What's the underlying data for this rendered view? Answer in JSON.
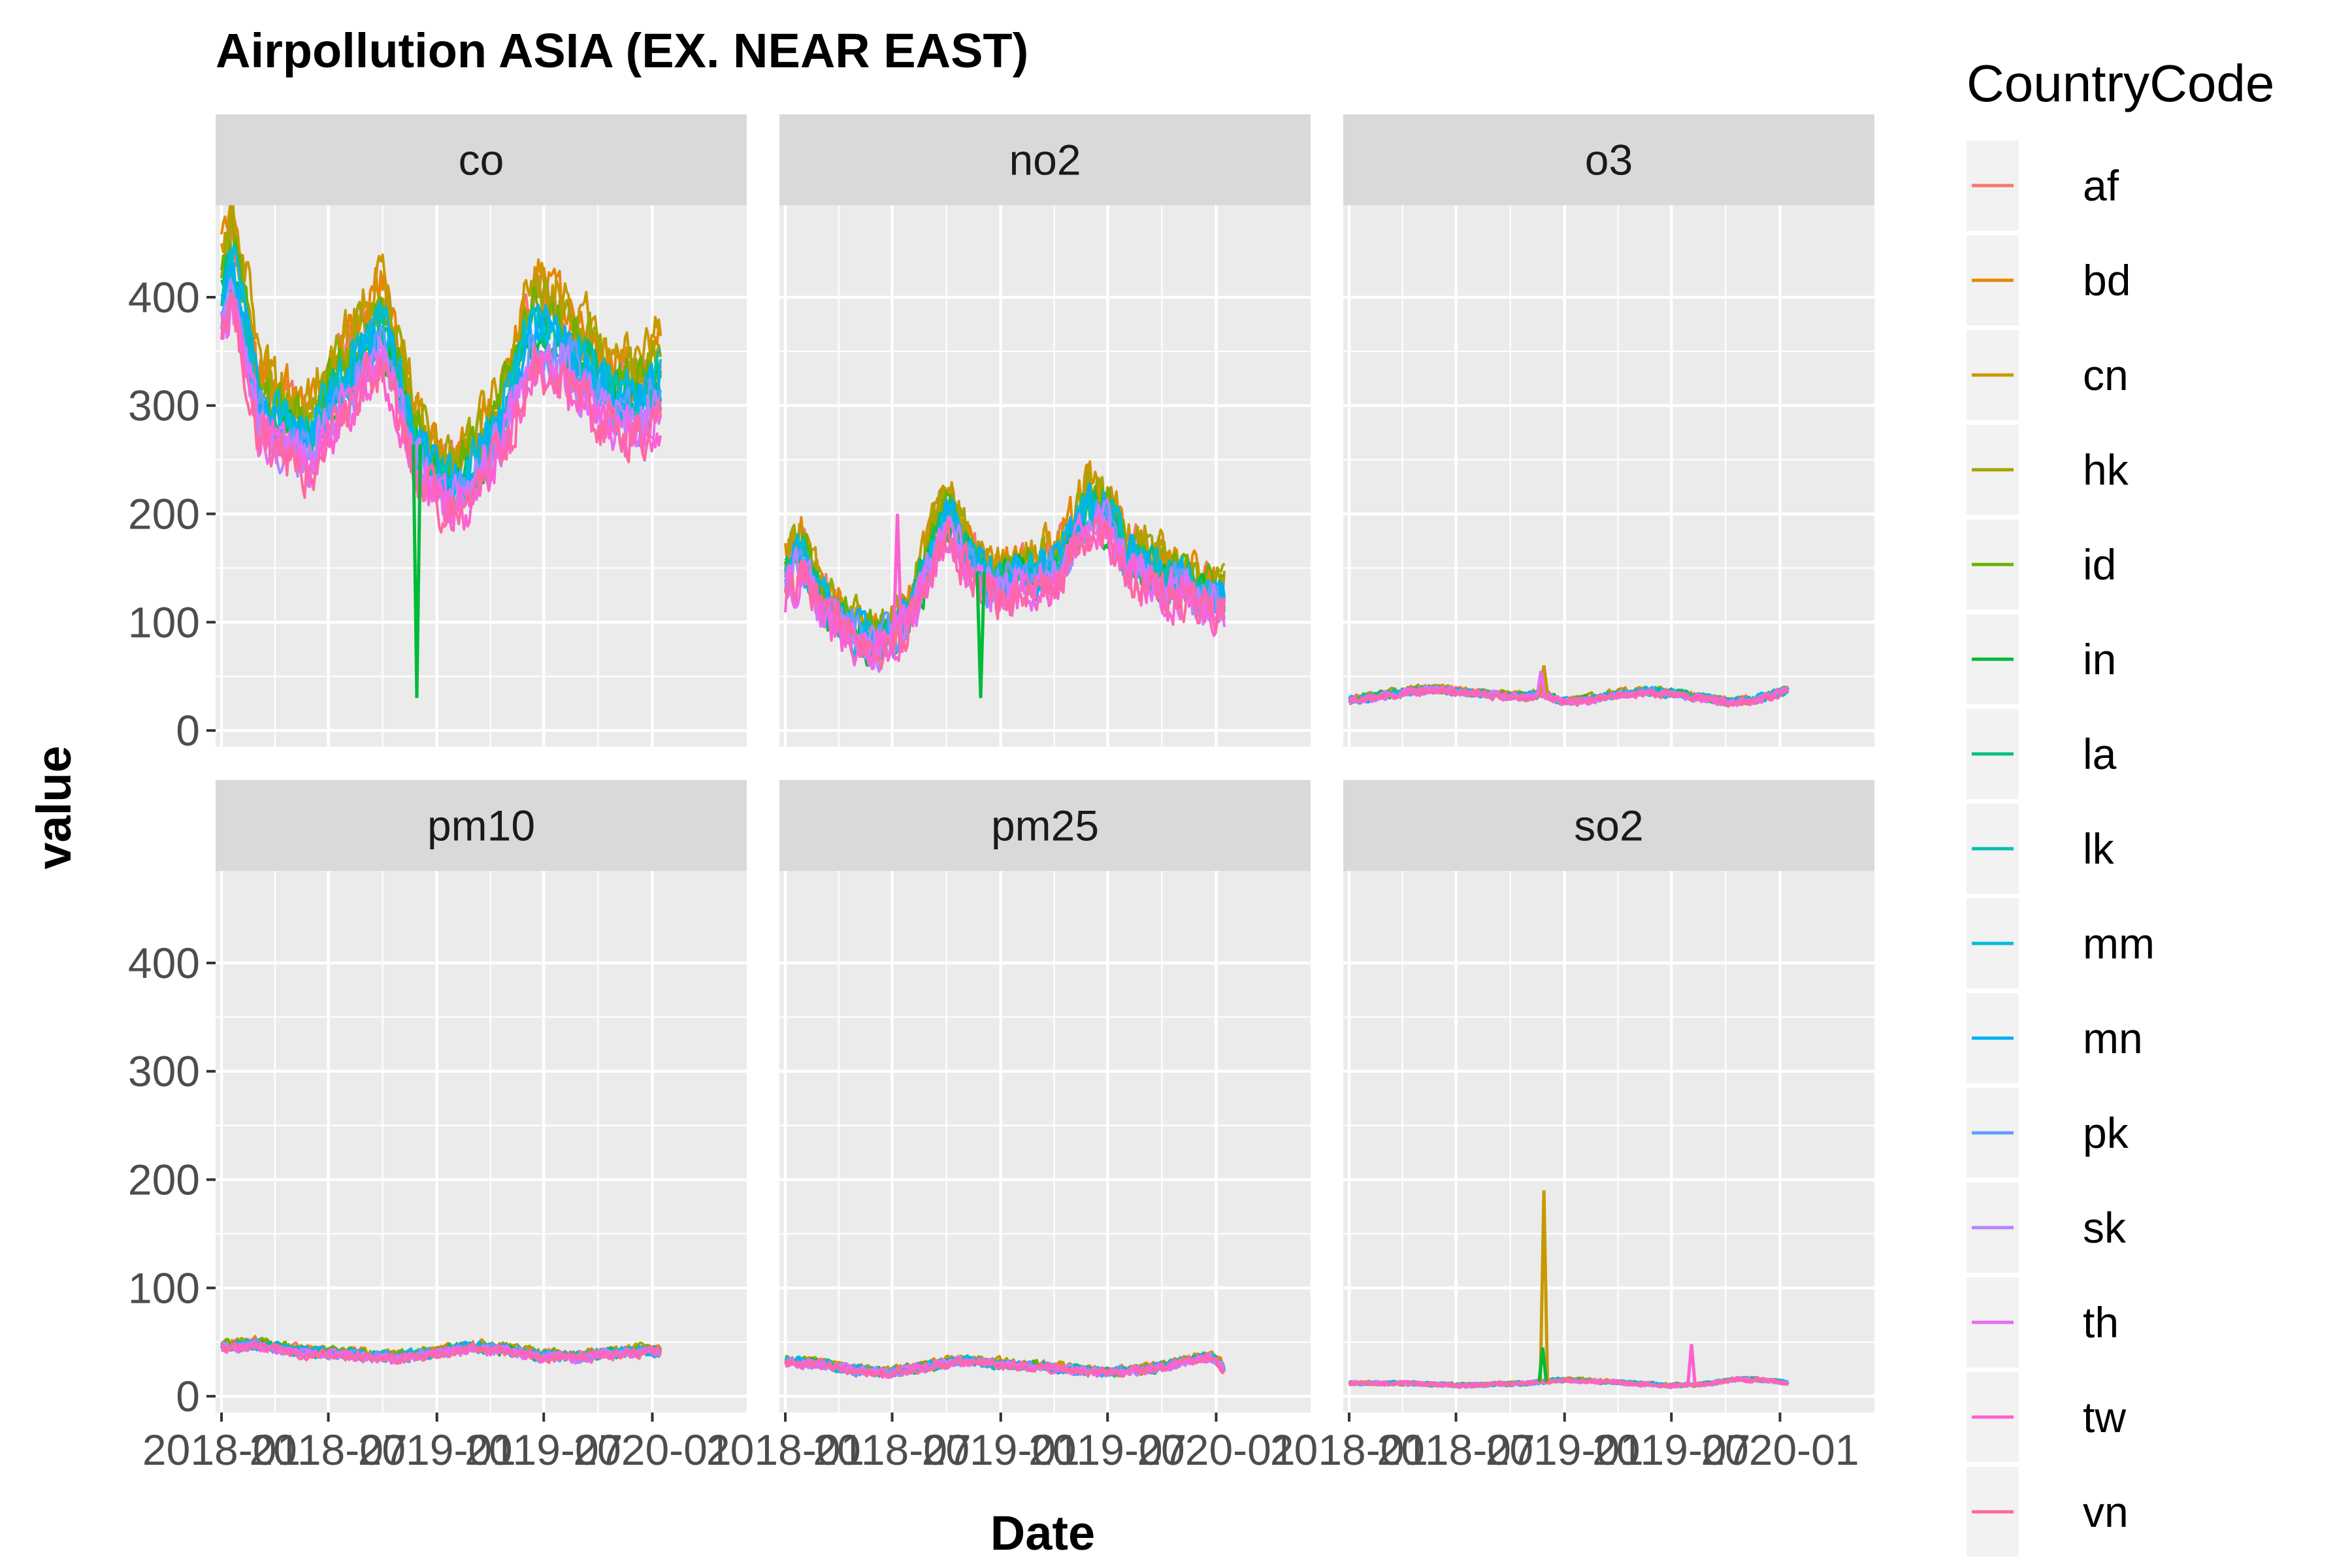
{
  "chart_data": {
    "type": "line",
    "title": "Airpollution ASIA (EX. NEAR EAST)",
    "xlabel": "Date",
    "ylabel": "value",
    "ylim": [
      -15,
      485
    ],
    "yticks": [
      0,
      100,
      200,
      300,
      400
    ],
    "xlim": [
      -10,
      890
    ],
    "xticks": [
      {
        "label": "2018-01",
        "t": 0
      },
      {
        "label": "2018-07",
        "t": 181
      },
      {
        "label": "2019-01",
        "t": 365
      },
      {
        "label": "2019-07",
        "t": 546
      },
      {
        "label": "2020-01",
        "t": 730
      }
    ],
    "grid": true,
    "legend": {
      "title": "CountryCode",
      "position": "right",
      "entries": [
        {
          "name": "af",
          "color": "#F8766D"
        },
        {
          "name": "bd",
          "color": "#E58700"
        },
        {
          "name": "cn",
          "color": "#C99800"
        },
        {
          "name": "hk",
          "color": "#A3A500"
        },
        {
          "name": "id",
          "color": "#6BB100"
        },
        {
          "name": "in",
          "color": "#00BA38"
        },
        {
          "name": "la",
          "color": "#00BF7D"
        },
        {
          "name": "lk",
          "color": "#00C0AF"
        },
        {
          "name": "mm",
          "color": "#00BCD8"
        },
        {
          "name": "mn",
          "color": "#00B0F6"
        },
        {
          "name": "pk",
          "color": "#619CFF"
        },
        {
          "name": "sk",
          "color": "#B983FF"
        },
        {
          "name": "th",
          "color": "#E76BF3"
        },
        {
          "name": "tw",
          "color": "#FD61D1"
        },
        {
          "name": "vn",
          "color": "#FF67A4"
        }
      ]
    },
    "panels": [
      {
        "name": "co",
        "anchors": [
          [
            0,
            395
          ],
          [
            20,
            420
          ],
          [
            45,
            360
          ],
          [
            60,
            305
          ],
          [
            90,
            285
          ],
          [
            120,
            275
          ],
          [
            150,
            265
          ],
          [
            180,
            300
          ],
          [
            200,
            310
          ],
          [
            240,
            345
          ],
          [
            270,
            375
          ],
          [
            300,
            320
          ],
          [
            330,
            265
          ],
          [
            360,
            240
          ],
          [
            380,
            225
          ],
          [
            410,
            230
          ],
          [
            440,
            250
          ],
          [
            470,
            275
          ],
          [
            500,
            325
          ],
          [
            530,
            375
          ],
          [
            560,
            360
          ],
          [
            590,
            345
          ],
          [
            620,
            330
          ],
          [
            640,
            315
          ],
          [
            660,
            305
          ],
          [
            680,
            300
          ],
          [
            700,
            295
          ],
          [
            720,
            305
          ],
          [
            740,
            320
          ]
        ],
        "noise": 40,
        "spikes": [
          {
            "t": 331,
            "value": 30,
            "series": "in"
          }
        ]
      },
      {
        "name": "no2",
        "anchors": [
          [
            0,
            140
          ],
          [
            30,
            160
          ],
          [
            60,
            120
          ],
          [
            100,
            100
          ],
          [
            140,
            80
          ],
          [
            180,
            90
          ],
          [
            210,
            105
          ],
          [
            240,
            150
          ],
          [
            260,
            185
          ],
          [
            280,
            195
          ],
          [
            300,
            170
          ],
          [
            320,
            155
          ],
          [
            340,
            140
          ],
          [
            370,
            135
          ],
          [
            400,
            140
          ],
          [
            430,
            145
          ],
          [
            460,
            150
          ],
          [
            490,
            180
          ],
          [
            520,
            205
          ],
          [
            550,
            195
          ],
          [
            580,
            160
          ],
          [
            610,
            150
          ],
          [
            640,
            140
          ],
          [
            670,
            135
          ],
          [
            700,
            125
          ],
          [
            730,
            120
          ],
          [
            745,
            120
          ]
        ],
        "noise": 35,
        "spikes": [
          {
            "t": 331,
            "value": 30,
            "series": "in"
          },
          {
            "t": 190,
            "value": 200,
            "series": "tw"
          }
        ]
      },
      {
        "name": "o3",
        "anchors": [
          [
            0,
            28
          ],
          [
            50,
            32
          ],
          [
            100,
            36
          ],
          [
            150,
            38
          ],
          [
            200,
            35
          ],
          [
            250,
            33
          ],
          [
            300,
            31
          ],
          [
            330,
            34
          ],
          [
            360,
            27
          ],
          [
            400,
            28
          ],
          [
            450,
            33
          ],
          [
            500,
            36
          ],
          [
            550,
            34
          ],
          [
            600,
            30
          ],
          [
            650,
            26
          ],
          [
            700,
            30
          ],
          [
            745,
            38
          ]
        ],
        "noise": 6,
        "spikes": [
          {
            "t": 330,
            "value": 60,
            "series": "cn"
          },
          {
            "t": 325,
            "value": 55,
            "series": "th"
          }
        ]
      },
      {
        "name": "pm10",
        "anchors": [
          [
            0,
            46
          ],
          [
            60,
            48
          ],
          [
            120,
            42
          ],
          [
            180,
            40
          ],
          [
            240,
            38
          ],
          [
            300,
            36
          ],
          [
            360,
            40
          ],
          [
            420,
            45
          ],
          [
            480,
            43
          ],
          [
            540,
            38
          ],
          [
            600,
            36
          ],
          [
            660,
            40
          ],
          [
            720,
            42
          ],
          [
            745,
            41
          ]
        ],
        "noise": 8,
        "spikes": []
      },
      {
        "name": "pm25",
        "anchors": [
          [
            0,
            32
          ],
          [
            60,
            30
          ],
          [
            120,
            24
          ],
          [
            180,
            22
          ],
          [
            240,
            28
          ],
          [
            300,
            33
          ],
          [
            360,
            30
          ],
          [
            420,
            28
          ],
          [
            480,
            25
          ],
          [
            540,
            22
          ],
          [
            600,
            24
          ],
          [
            660,
            30
          ],
          [
            720,
            37
          ],
          [
            745,
            25
          ]
        ],
        "noise": 7,
        "spikes": []
      },
      {
        "name": "so2",
        "anchors": [
          [
            0,
            12
          ],
          [
            100,
            12
          ],
          [
            200,
            10
          ],
          [
            300,
            12
          ],
          [
            360,
            15
          ],
          [
            420,
            14
          ],
          [
            480,
            12
          ],
          [
            540,
            10
          ],
          [
            600,
            11
          ],
          [
            660,
            16
          ],
          [
            720,
            14
          ],
          [
            745,
            12
          ]
        ],
        "noise": 3,
        "spikes": [
          {
            "t": 330,
            "value": 190,
            "series": "cn"
          },
          {
            "t": 328,
            "value": 45,
            "series": "in"
          },
          {
            "t": 580,
            "value": 48,
            "series": "tw"
          }
        ]
      }
    ]
  }
}
